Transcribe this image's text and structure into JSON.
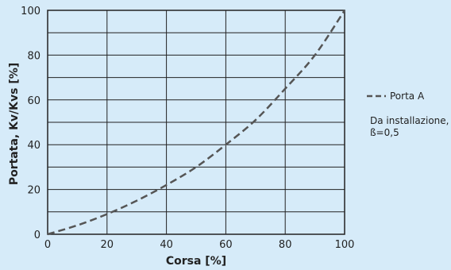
{
  "chart_data": {
    "type": "line",
    "xlabel": "Corsa [%]",
    "ylabel": "Portata, Kv/Kvs [%]",
    "xlim": [
      0,
      100
    ],
    "ylim": [
      0,
      100
    ],
    "x_ticks": [
      "0",
      "20",
      "40",
      "60",
      "80",
      "100"
    ],
    "y_ticks": [
      "0",
      "20",
      "40",
      "60",
      "80",
      "100"
    ],
    "grid": true,
    "legend_position": "right",
    "series": [
      {
        "name": "Porta A",
        "style": "dashed",
        "color": "#555555",
        "x": [
          0,
          10,
          20,
          30,
          40,
          50,
          60,
          70,
          80,
          90,
          100
        ],
        "y": [
          0,
          4,
          9,
          15,
          22,
          30,
          40,
          51,
          65,
          80,
          100
        ]
      }
    ],
    "annotation_lines": [
      "Da installazione,",
      "ß=0,5"
    ]
  },
  "colors": {
    "background": "#d6ebf9",
    "plot_area": "#d6ebf9",
    "grid": "#222222",
    "series": "#555555"
  }
}
